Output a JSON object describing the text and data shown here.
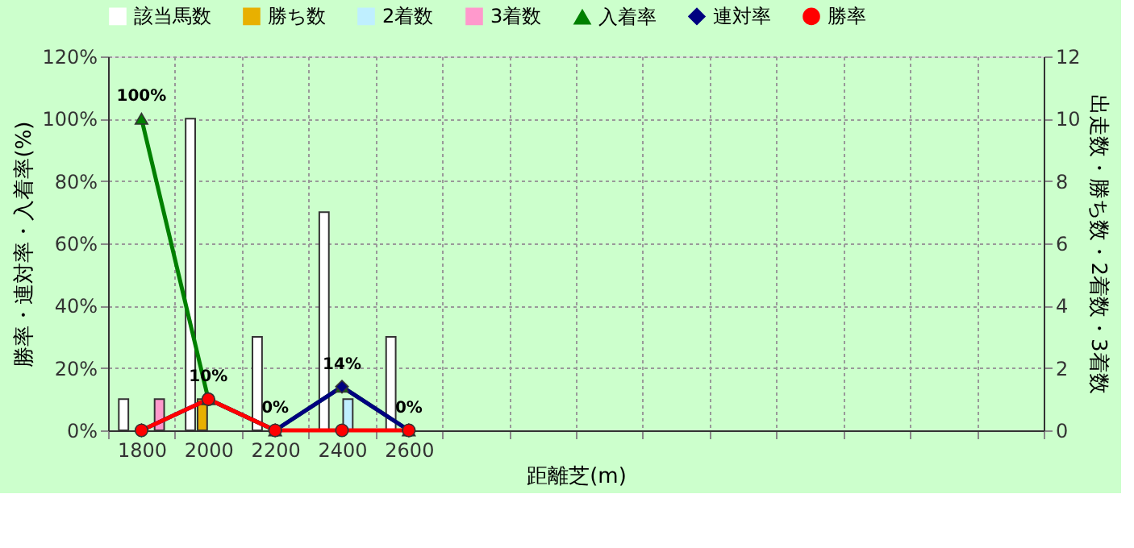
{
  "chart_data": {
    "type": "bar",
    "categories": [
      "1800",
      "2000",
      "2200",
      "2400",
      "2600",
      null,
      null,
      null,
      null,
      null,
      null,
      null,
      null,
      null
    ],
    "xlabel": "距離芝(m)",
    "ylabel": "勝率・連対率・入着率(%)",
    "y2label": "出走数・勝ち数・2着数・3着数",
    "series": [
      {
        "name": "該当馬数",
        "axis": "y2",
        "color": "#ffffff",
        "values": [
          1,
          10,
          3,
          7,
          3,
          null,
          null,
          null,
          null,
          null,
          null,
          null,
          null,
          null
        ]
      },
      {
        "name": "勝ち数",
        "axis": "y2",
        "color": "#e8b000",
        "values": [
          0,
          1,
          0,
          0,
          0,
          null,
          null,
          null,
          null,
          null,
          null,
          null,
          null,
          null
        ]
      },
      {
        "name": "2着数",
        "axis": "y2",
        "color": "#bfefff",
        "values": [
          0,
          0,
          0,
          1,
          0,
          null,
          null,
          null,
          null,
          null,
          null,
          null,
          null,
          null
        ]
      },
      {
        "name": "3着数",
        "axis": "y2",
        "color": "#ff99cc",
        "values": [
          1,
          0,
          0,
          0,
          0,
          null,
          null,
          null,
          null,
          null,
          null,
          null,
          null,
          null
        ]
      },
      {
        "name": "入着率",
        "type": "line",
        "marker": "triangle",
        "color": "#008000",
        "values": [
          100,
          10,
          0,
          14,
          0,
          null,
          null,
          null,
          null,
          null,
          null,
          null,
          null,
          null
        ],
        "value_labels": [
          "100%",
          "10%",
          "0%",
          "14%",
          "0%",
          null,
          null,
          null,
          null,
          null,
          null,
          null,
          null,
          null
        ]
      },
      {
        "name": "連対率",
        "type": "line",
        "marker": "diamond",
        "color": "#000080",
        "values": [
          0,
          10,
          0,
          14,
          0,
          null,
          null,
          null,
          null,
          null,
          null,
          null,
          null,
          null
        ]
      },
      {
        "name": "勝率",
        "type": "line",
        "marker": "circle",
        "color": "#ff0000",
        "values": [
          0,
          10,
          0,
          0,
          0,
          null,
          null,
          null,
          null,
          null,
          null,
          null,
          null,
          null
        ]
      }
    ],
    "ylim": [
      0,
      120
    ],
    "yticks": [
      {
        "value": 0,
        "label": "0%"
      },
      {
        "value": 20,
        "label": "20%"
      },
      {
        "value": 40,
        "label": "40%"
      },
      {
        "value": 60,
        "label": "60%"
      },
      {
        "value": 80,
        "label": "80%"
      },
      {
        "value": 100,
        "label": "100%"
      },
      {
        "value": 120,
        "label": "120%"
      }
    ],
    "y2lim": [
      0,
      12
    ],
    "y2ticks": [
      0,
      2,
      4,
      6,
      8,
      10,
      12
    ],
    "grid": true,
    "legend": "top"
  }
}
